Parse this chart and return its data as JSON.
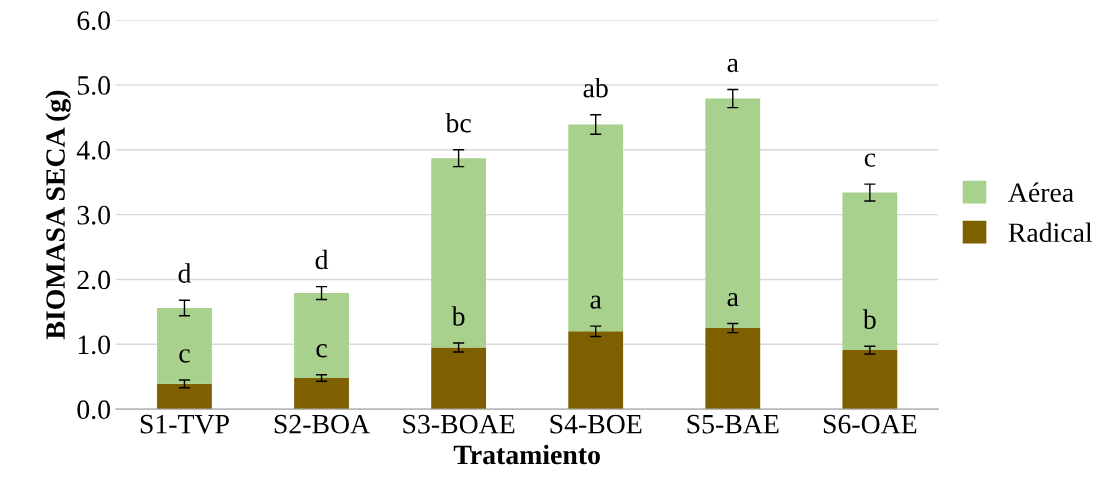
{
  "chart_data": {
    "type": "bar",
    "stacked": true,
    "xlabel": "Tratamiento",
    "ylabel": "BIOMASA SECA (g)",
    "categories": [
      "S1-TVP",
      "S2-BOA",
      "S3-BOAE",
      "S4-BOE",
      "S5-BAE",
      "S6-OAE"
    ],
    "series": [
      {
        "name": "Radical",
        "color": "#7f6000",
        "values": [
          0.39,
          0.48,
          0.95,
          1.2,
          1.25,
          0.91
        ],
        "errors": [
          0.06,
          0.05,
          0.07,
          0.08,
          0.07,
          0.06
        ]
      },
      {
        "name": "Aérea",
        "color": "#a9d18e",
        "values": [
          1.17,
          1.31,
          2.92,
          3.19,
          3.54,
          2.43
        ],
        "errors": [
          0.12,
          0.1,
          0.13,
          0.15,
          0.14,
          0.13
        ]
      }
    ],
    "ylim": [
      0,
      6
    ],
    "yticks": [
      {
        "value": 0,
        "label": "0.0"
      },
      {
        "value": 1,
        "label": "1.0"
      },
      {
        "value": 2,
        "label": "2.0"
      },
      {
        "value": 3,
        "label": "3.0"
      },
      {
        "value": 4,
        "label": "4.0"
      },
      {
        "value": 5,
        "label": "5.0"
      },
      {
        "value": 6,
        "label": "6.0"
      }
    ],
    "grid": "y",
    "legend": "right",
    "annotations": [
      "d",
      "d",
      "bc",
      "ab",
      "a",
      "c",
      "c",
      "c",
      "b",
      "a",
      "a",
      "b"
    ]
  }
}
